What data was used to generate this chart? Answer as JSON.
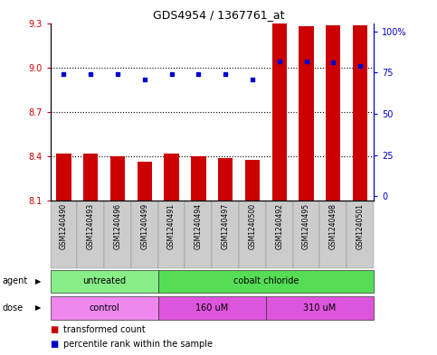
{
  "title": "GDS4954 / 1367761_at",
  "samples": [
    "GSM1240490",
    "GSM1240493",
    "GSM1240496",
    "GSM1240499",
    "GSM1240491",
    "GSM1240494",
    "GSM1240497",
    "GSM1240500",
    "GSM1240492",
    "GSM1240495",
    "GSM1240498",
    "GSM1240501"
  ],
  "red_values": [
    8.42,
    8.42,
    8.4,
    8.365,
    8.42,
    8.4,
    8.388,
    8.375,
    9.295,
    9.28,
    9.285,
    9.285
  ],
  "blue_values": [
    74,
    74,
    74,
    71,
    74,
    74,
    74,
    71,
    82,
    82,
    81,
    79
  ],
  "y_min": 8.1,
  "y_max": 9.3,
  "y_ticks": [
    8.1,
    8.4,
    8.7,
    9.0,
    9.3
  ],
  "y_right_ticks": [
    0,
    25,
    50,
    75,
    100
  ],
  "y_right_labels": [
    "0",
    "25",
    "50",
    "75",
    "100%"
  ],
  "dotted_lines": [
    8.4,
    8.7,
    9.0
  ],
  "bar_color": "#cc0000",
  "dot_color": "#0000cc",
  "agent_groups": [
    {
      "label": "untreated",
      "start": 0,
      "end": 4,
      "color": "#88ee88"
    },
    {
      "label": "cobalt chloride",
      "start": 4,
      "end": 12,
      "color": "#55dd55"
    }
  ],
  "dose_groups": [
    {
      "label": "control",
      "start": 0,
      "end": 4,
      "color": "#ee88ee"
    },
    {
      "label": "160 uM",
      "start": 4,
      "end": 8,
      "color": "#dd55dd"
    },
    {
      "label": "310 uM",
      "start": 8,
      "end": 12,
      "color": "#dd55dd"
    }
  ],
  "legend_red": "transformed count",
  "legend_blue": "percentile rank within the sample",
  "bar_width": 0.55,
  "xlim": [
    -0.5,
    11.5
  ]
}
